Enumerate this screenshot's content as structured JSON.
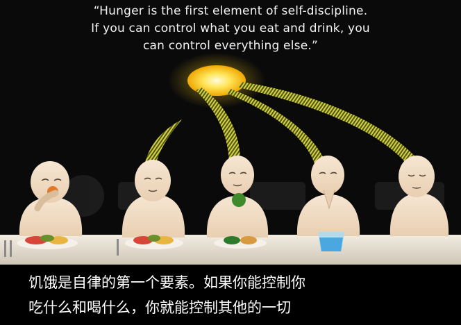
{
  "quote": {
    "line1": "“Hunger is the first element of self-discipline.",
    "line2": "If you can control what you eat and drink, you",
    "line3": "can control everything else.”"
  },
  "subtitle": {
    "line1": "饥饿是自律的第一个要素。如果你能控制你",
    "line2": "吃什么和喝什么，你就能控制其他的一切"
  },
  "colors": {
    "background": "#0a0a0a",
    "sun": "#ffd21a",
    "beam": "#c9c23a",
    "skin": "#f2dfc8",
    "table": "#e8e0d2",
    "text": "#ffffff"
  }
}
